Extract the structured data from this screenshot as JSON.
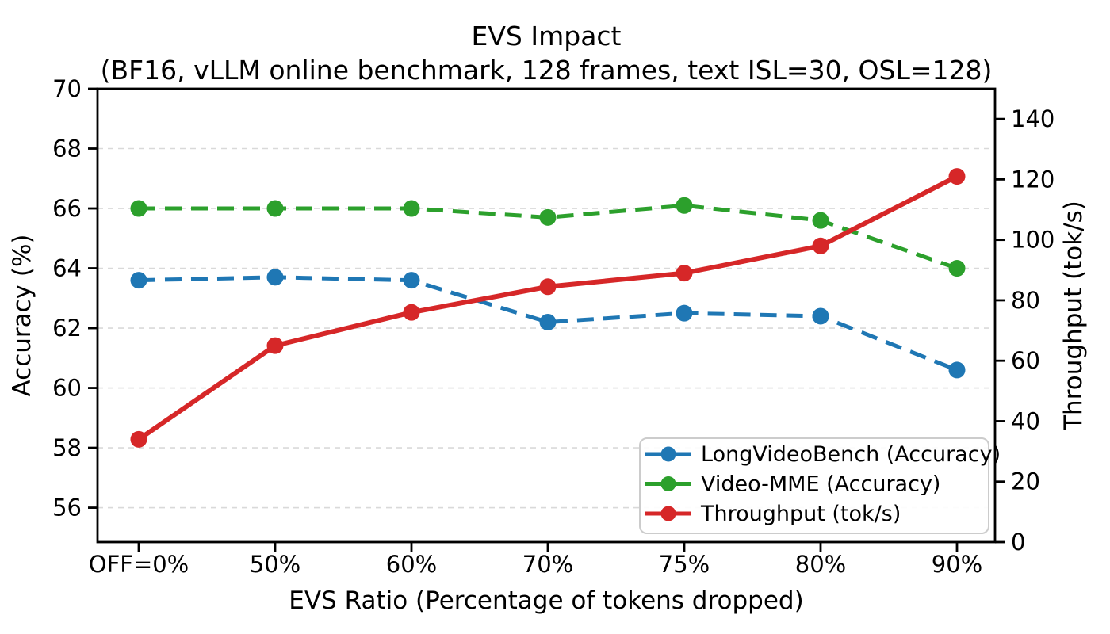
{
  "figure": {
    "title": "EVS Impact",
    "subtitle": "(BF16, vLLM online benchmark, 128 frames, text ISL=30, OSL=128)"
  },
  "chart_data": {
    "type": "line",
    "title": "EVS Impact",
    "subtitle": "(BF16, vLLM online benchmark, 128 frames, text ISL=30, OSL=128)",
    "categories": [
      "OFF=0%",
      "50%",
      "60%",
      "70%",
      "75%",
      "80%",
      "90%"
    ],
    "xlabel": "EVS Ratio (Percentage of tokens dropped)",
    "axes": {
      "left": {
        "label": "Accuracy (%)",
        "lim": [
          54.85,
          70
        ],
        "ticks": [
          56,
          58,
          60,
          62,
          64,
          66,
          68,
          70
        ]
      },
      "right": {
        "label": "Throughput (tok/s)",
        "lim": [
          0,
          150
        ],
        "ticks": [
          0,
          20,
          40,
          60,
          80,
          100,
          120,
          140
        ]
      }
    },
    "grid": "horizontal-dashed",
    "grid_color": "#d9d9d9",
    "legend": {
      "position": "lower right"
    },
    "series": [
      {
        "name": "LongVideoBench (Accuracy)",
        "axis": "left",
        "color": "#1f77b4",
        "line_style": "dashed",
        "marker": "circle",
        "values": [
          63.6,
          63.7,
          63.6,
          62.2,
          62.5,
          62.4,
          60.6
        ]
      },
      {
        "name": "Video-MME (Accuracy)",
        "axis": "left",
        "color": "#2ca02c",
        "line_style": "dashed",
        "marker": "circle",
        "values": [
          66.0,
          66.0,
          66.0,
          65.7,
          66.1,
          65.6,
          64.0
        ]
      },
      {
        "name": "Throughput (tok/s)",
        "axis": "right",
        "color": "#d62728",
        "line_style": "solid",
        "marker": "circle",
        "values": [
          34,
          65,
          76,
          84.5,
          89,
          98,
          121
        ]
      }
    ]
  }
}
